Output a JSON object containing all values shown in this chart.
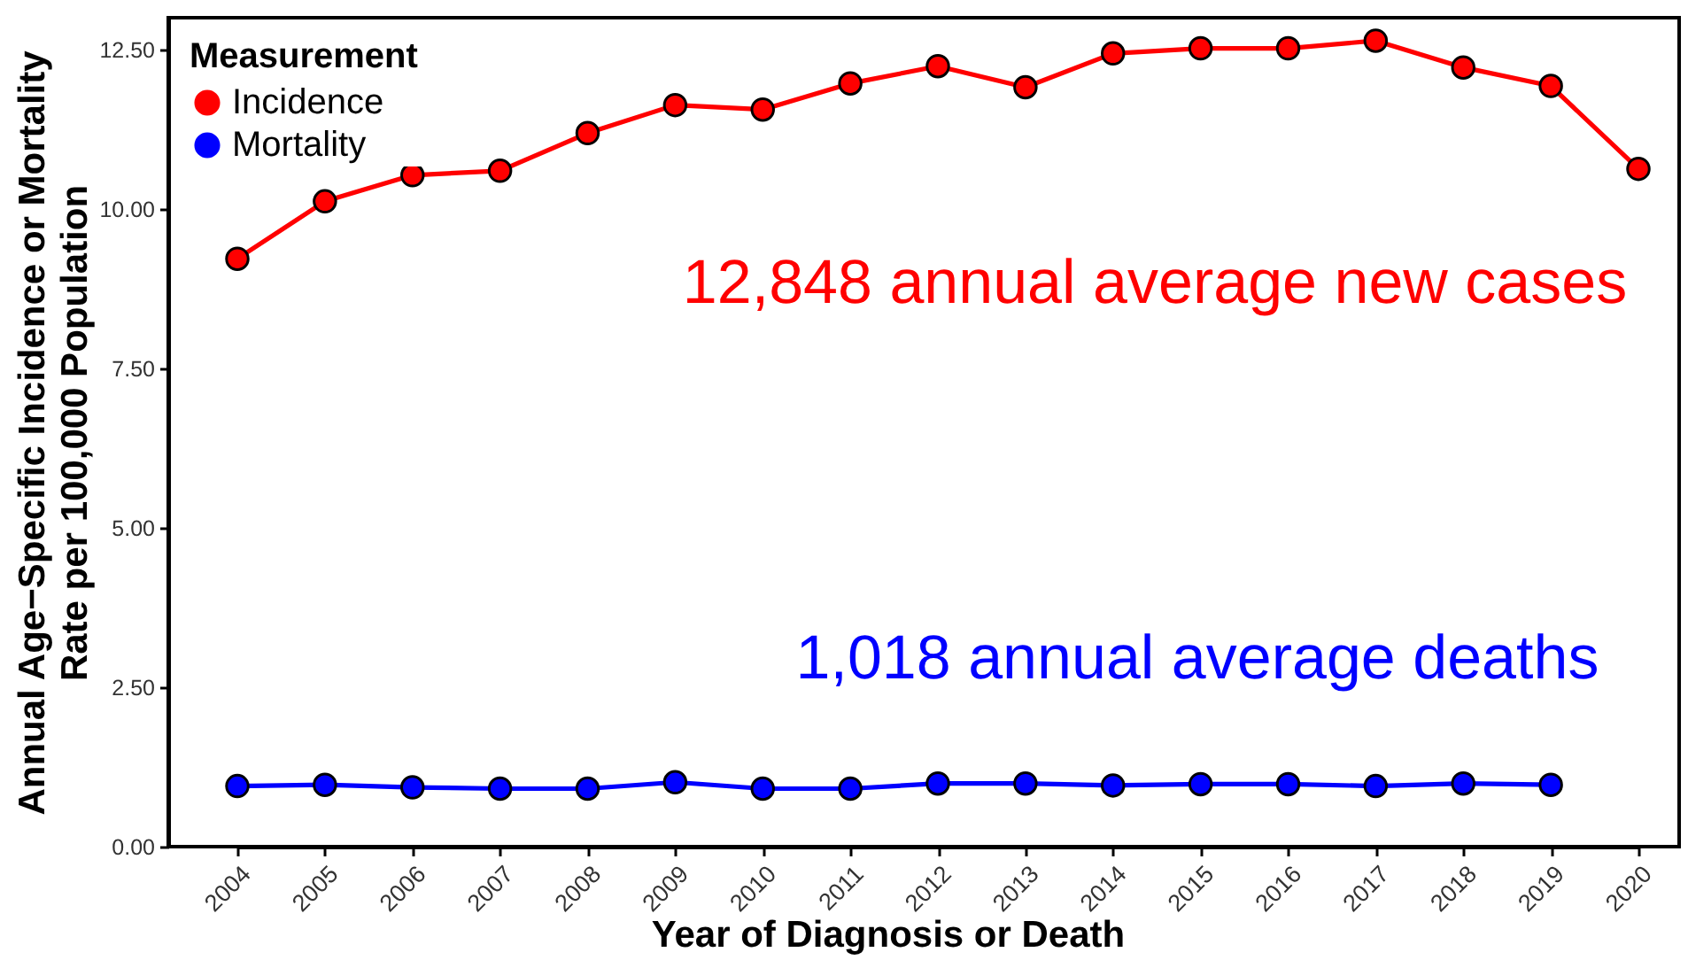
{
  "chart_data": {
    "type": "line",
    "xlabel": "Year of Diagnosis or Death",
    "ylabel": "Annual Age−Specific Incidence or Mortality\nRate per 100,000 Population",
    "legend_title": "Measurement",
    "categories": [
      "2004",
      "2005",
      "2006",
      "2007",
      "2008",
      "2009",
      "2010",
      "2011",
      "2012",
      "2013",
      "2014",
      "2015",
      "2016",
      "2017",
      "2018",
      "2019",
      "2020"
    ],
    "series": [
      {
        "name": "Incidence",
        "color": "#ff0000",
        "values": [
          9.22,
          10.12,
          10.53,
          10.6,
          11.19,
          11.63,
          11.56,
          11.97,
          12.24,
          11.91,
          12.44,
          12.52,
          12.52,
          12.64,
          12.22,
          11.93,
          10.63
        ]
      },
      {
        "name": "Mortality",
        "color": "#0000ff",
        "values": [
          0.95,
          0.97,
          0.93,
          0.91,
          0.91,
          1.01,
          0.91,
          0.91,
          0.99,
          0.99,
          0.96,
          0.98,
          0.98,
          0.95,
          0.99,
          0.97,
          null
        ]
      }
    ],
    "ylim": [
      0,
      13
    ],
    "yticks": [
      {
        "value": 0,
        "label": "0.00"
      },
      {
        "value": 2.5,
        "label": "2.50"
      },
      {
        "value": 5,
        "label": "5.00"
      },
      {
        "value": 7.5,
        "label": "7.50"
      },
      {
        "value": 10,
        "label": "10.00"
      },
      {
        "value": 12.5,
        "label": "12.50"
      }
    ],
    "annotations": [
      "12,848 annual average new cases",
      "1,018 annual average deaths"
    ],
    "legend": "top left",
    "grid": false,
    "marker": "circle",
    "line_style": "solid"
  }
}
